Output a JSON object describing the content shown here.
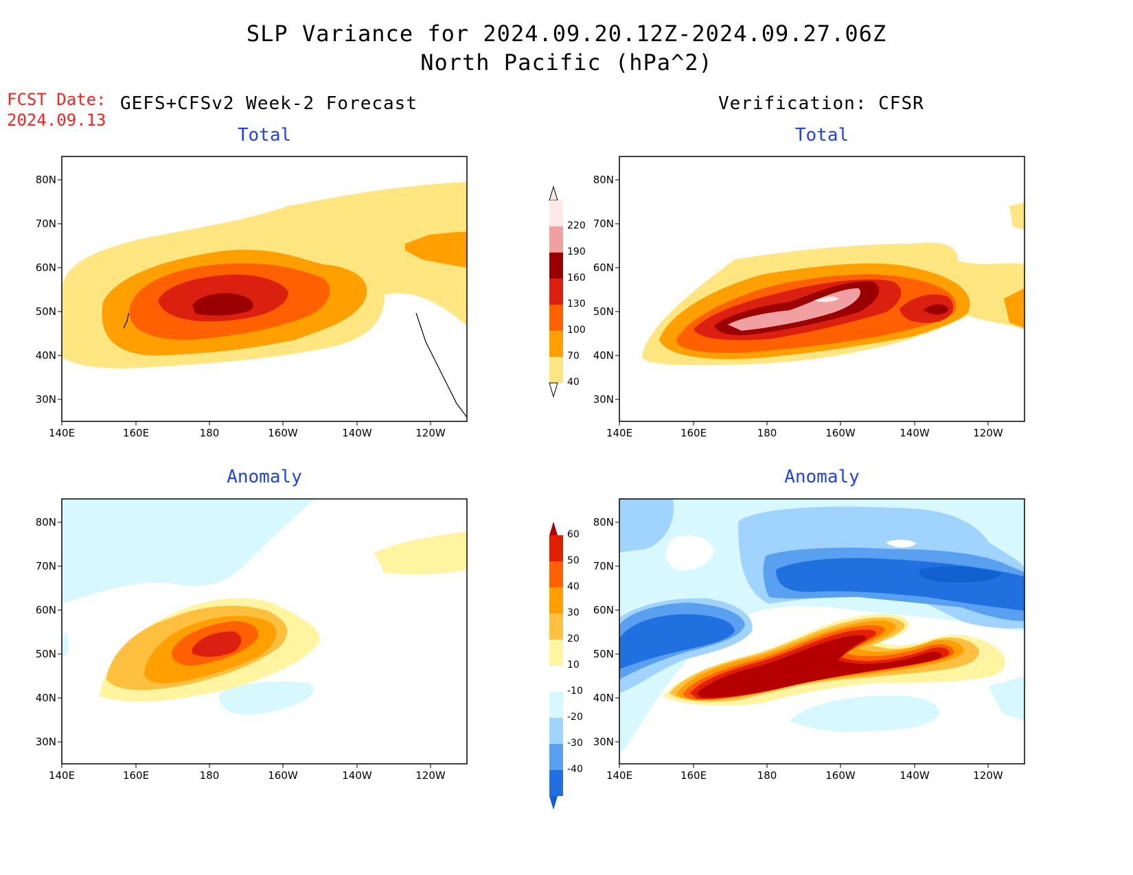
{
  "header": {
    "title_line1": "SLP Variance for 2024.09.20.12Z-2024.09.27.06Z",
    "title_line2": "North Pacific (hPa^2)",
    "fcst_label": "FCST Date:",
    "fcst_date": "2024.09.13",
    "left_heading": "GEFS+CFSv2 Week-2 Forecast",
    "right_heading": "Verification: CFSR"
  },
  "panels": {
    "top_left_title": "Total",
    "top_right_title": "Total",
    "bottom_left_title": "Anomaly",
    "bottom_right_title": "Anomaly"
  },
  "axes": {
    "lon_labels": [
      "140E",
      "160E",
      "180",
      "160W",
      "140W",
      "120W"
    ],
    "lat_labels": [
      "80N",
      "70N",
      "60N",
      "50N",
      "40N",
      "30N"
    ]
  },
  "colorbars": {
    "total": {
      "labels": [
        "220",
        "190",
        "160",
        "130",
        "100",
        "70",
        "40"
      ],
      "colors": [
        "#ffe8e8",
        "#f0a0a0",
        "#9b0000",
        "#dc2010",
        "#ff6000",
        "#ffa000",
        "#ffe680"
      ]
    },
    "anomaly": {
      "labels": [
        "60",
        "50",
        "40",
        "30",
        "20",
        "10",
        "-10",
        "-20",
        "-30",
        "-40"
      ],
      "colors": [
        "#b40000",
        "#e02000",
        "#ff6000",
        "#ffa000",
        "#ffc040",
        "#fff5a0",
        "#ffffff",
        "#d8f8ff",
        "#a0d4ff",
        "#5aa0f0",
        "#2070e0",
        "#1060d0"
      ]
    }
  }
}
